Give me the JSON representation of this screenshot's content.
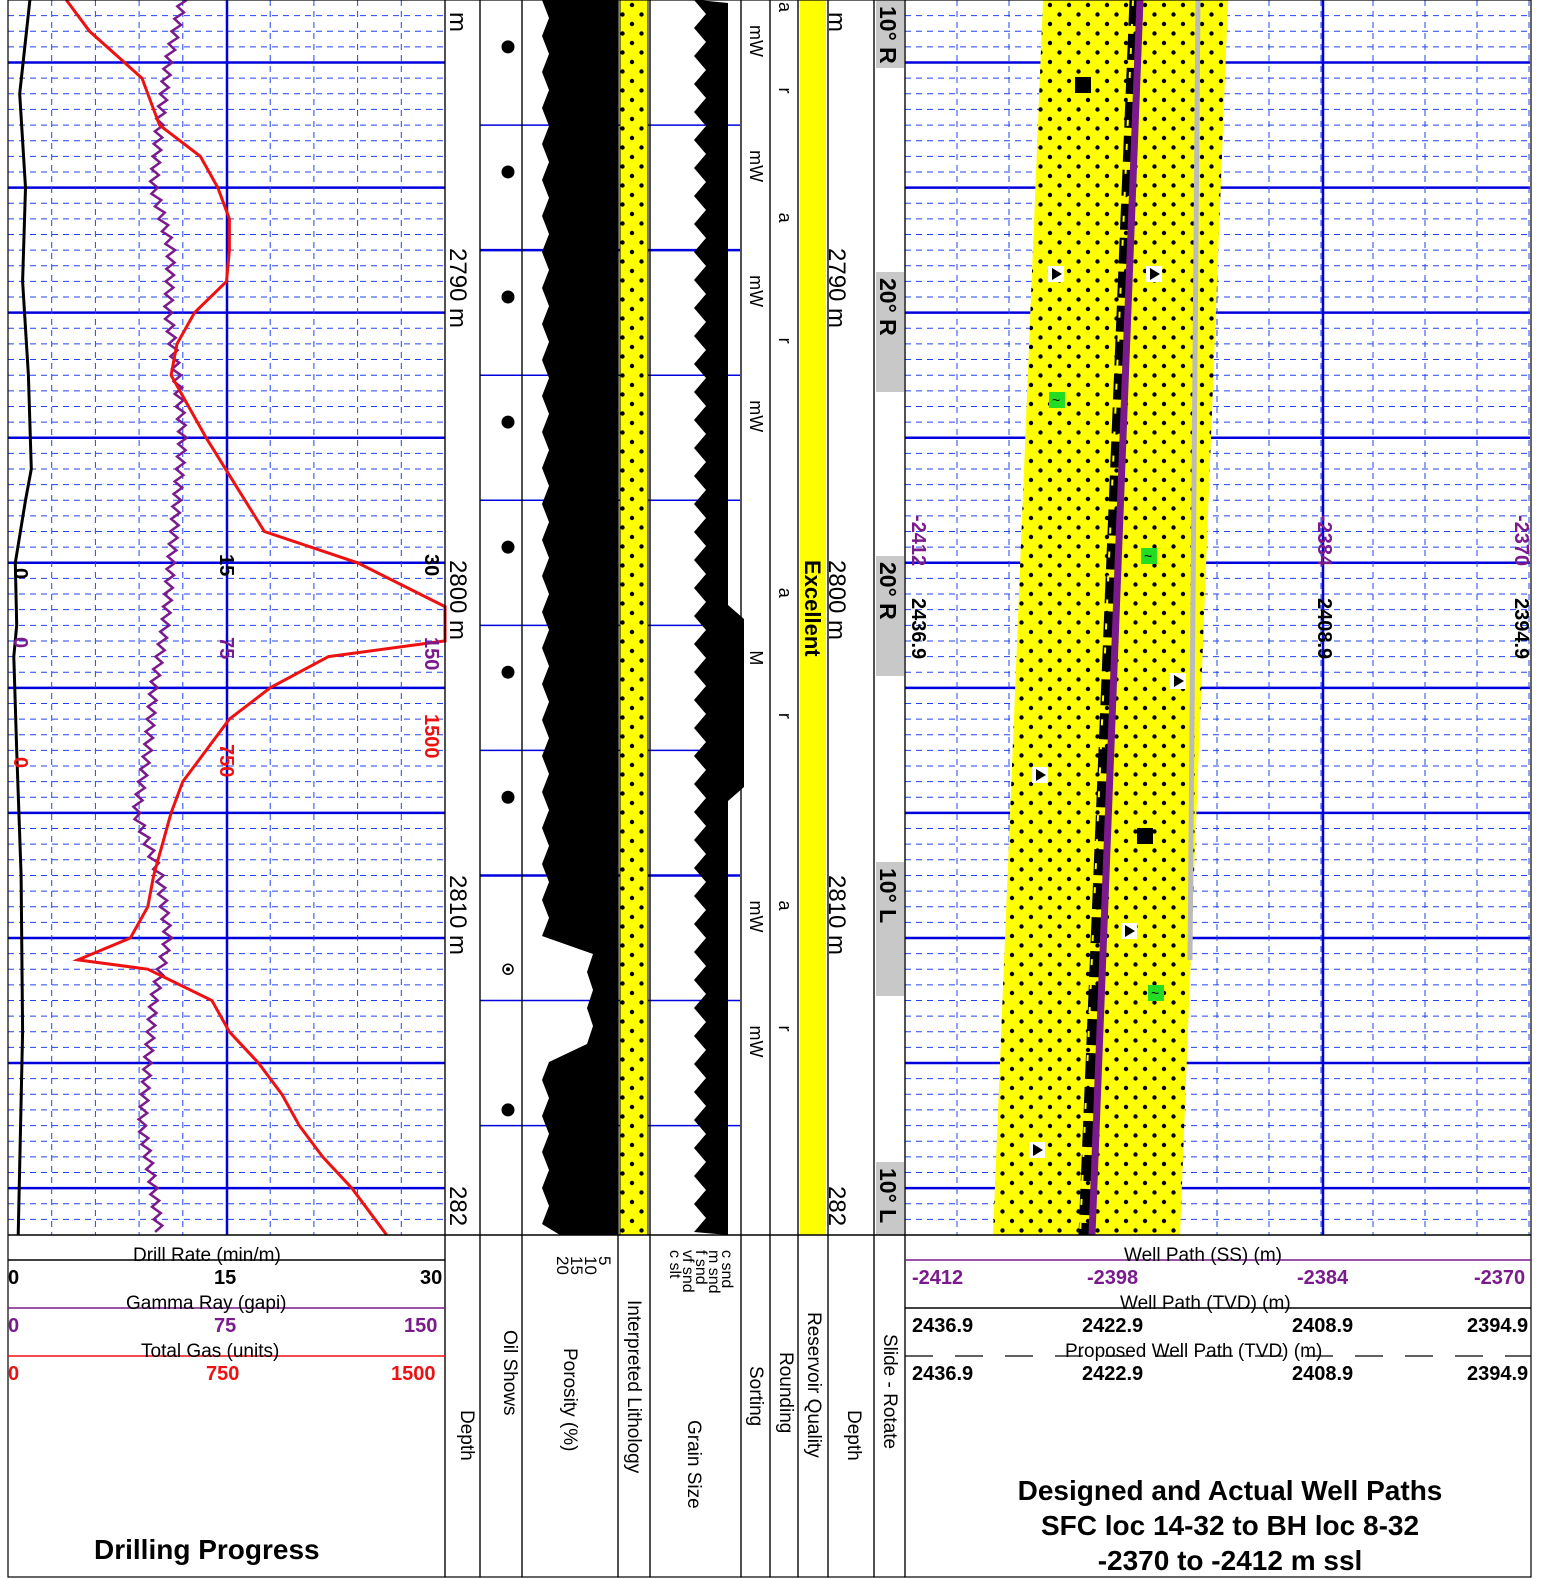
{
  "colors": {
    "grid_major": "#0000dd",
    "grid_minor": "#2244ee",
    "gamma": "#7a1a8c",
    "gas": "#ee1111",
    "rate": "#000000",
    "yellow": "#ffff00",
    "gray_slide": "#c8c8c8",
    "green_mark": "#22dd22"
  },
  "chart_data": {
    "type": "well-log",
    "depth": {
      "top": 2782.0,
      "bottom": 2821.5,
      "unit": "m",
      "labels": [
        "2790 m",
        "2800 m",
        "2810 m",
        "282"
      ],
      "top_partial": "m"
    },
    "scales": {
      "drill_rate": {
        "label": "Drill Rate (min/m)",
        "min": 0,
        "mid": 15,
        "max": 30,
        "ticks": [
          "0",
          "15",
          "30"
        ]
      },
      "gamma_ray": {
        "label": "Gamma Ray (gapi)",
        "min": 0,
        "mid": 75,
        "max": 150,
        "ticks": [
          "0",
          "75",
          "150"
        ]
      },
      "total_gas": {
        "label": "Total Gas (units)",
        "min": 0,
        "mid": 750,
        "max": 1500,
        "ticks": [
          "0",
          "750",
          "1500"
        ]
      },
      "well_path_ss": {
        "label": "Well Path (SS) (m)",
        "ticks": [
          "-2412",
          "-2398",
          "-2384",
          "-2370"
        ]
      },
      "well_path_tvd": {
        "label": "Well Path (TVD) (m)",
        "ticks": [
          "2436.9",
          "2422.9",
          "2408.9",
          "2394.9"
        ]
      },
      "proposed_tvd": {
        "label": "Proposed Well Path (TVD) (m)",
        "ticks": [
          "2436.9",
          "2422.9",
          "2408.9",
          "2394.9"
        ]
      }
    },
    "total_gas_series": {
      "depth": [
        2782,
        2783,
        2784.5,
        2786,
        2787,
        2788,
        2789,
        2790,
        2791,
        2792,
        2793,
        2794,
        2795,
        2796,
        2797.5,
        2799,
        2800,
        2801.4,
        2802.5,
        2803,
        2804,
        2805,
        2806,
        2807,
        2808,
        2809,
        2810,
        2811,
        2812,
        2812.7,
        2813,
        2814,
        2815,
        2816,
        2817,
        2818,
        2819,
        2820,
        2821.5
      ],
      "value": [
        200,
        280,
        460,
        520,
        660,
        720,
        760,
        760,
        750,
        640,
        580,
        560,
        620,
        680,
        780,
        880,
        1200,
        1500,
        1500,
        1100,
        900,
        760,
        680,
        600,
        560,
        530,
        500,
        480,
        420,
        240,
        480,
        700,
        760,
        860,
        940,
        1000,
        1080,
        1180,
        1300
      ]
    },
    "gamma_series": {
      "depth": [
        2782,
        2784,
        2786,
        2788,
        2790,
        2792,
        2794,
        2796,
        2798,
        2800,
        2802,
        2804,
        2806,
        2808,
        2810,
        2812,
        2814,
        2816,
        2818,
        2820,
        2821.5
      ],
      "value": [
        60,
        55,
        52,
        50,
        56,
        55,
        58,
        60,
        58,
        56,
        54,
        50,
        48,
        44,
        52,
        55,
        50,
        48,
        46,
        50,
        52
      ]
    },
    "drill_rate_series": {
      "depth": [
        2782,
        2785,
        2788,
        2791,
        2794,
        2797,
        2798,
        2800,
        2802,
        2803,
        2806,
        2810,
        2815,
        2821.5
      ],
      "value": [
        1.5,
        0.8,
        1.2,
        1.0,
        1.4,
        1.6,
        1.2,
        0.5,
        0.6,
        0.4,
        0.6,
        0.9,
        1.0,
        0.7
      ]
    },
    "oil_show_depths": [
      2783.5,
      2787.5,
      2791.5,
      2795.5,
      2799.5,
      2803.5,
      2807.5,
      2813,
      2817.5
    ],
    "porosity_ticks": [
      "5",
      "10",
      "15",
      "20"
    ],
    "grain_size_ticks": [
      "c snd",
      "m snd",
      "f snd",
      "vf snd",
      "c slt"
    ],
    "sorting_labels": [
      {
        "depth": 2782.8,
        "text": "mW"
      },
      {
        "depth": 2786.8,
        "text": "mW"
      },
      {
        "depth": 2790.8,
        "text": "mW"
      },
      {
        "depth": 2794.8,
        "text": "mW"
      },
      {
        "depth": 2802.8,
        "text": "M"
      },
      {
        "depth": 2810.8,
        "text": "mW"
      },
      {
        "depth": 2814.8,
        "text": "mW"
      }
    ],
    "rounding_labels": [
      {
        "depth": 2784.8,
        "text": "r"
      },
      {
        "depth": 2788.8,
        "text": "a"
      },
      {
        "depth": 2792.8,
        "text": "r"
      },
      {
        "depth": 2800.8,
        "text": "a"
      },
      {
        "depth": 2804.8,
        "text": "r"
      },
      {
        "depth": 2810.8,
        "text": "a"
      },
      {
        "depth": 2814.8,
        "text": "r"
      }
    ],
    "rounding_top_partial": "a",
    "reservoir_quality": "Excellent",
    "slide_rotate": [
      {
        "text": "10° R"
      },
      {
        "text": "20° R"
      },
      {
        "text": "20° R"
      },
      {
        "text": "10° L"
      },
      {
        "text": "10° L"
      }
    ]
  },
  "headers": {
    "drill_rate_label": "Drill Rate (min/m)",
    "gamma_label": "Gamma Ray (gapi)",
    "gas_label": "Total Gas (units)",
    "depth": "Depth",
    "oil_shows": "Oil Shows",
    "porosity": "Porosity (%)",
    "lithology": "Interpreted Lithology",
    "grain_size": "Grain Size",
    "sorting": "Sorting",
    "rounding": "Rounding",
    "reservoir_quality": "Reservoir Quality",
    "depth2": "Depth",
    "slide_rotate": "Slide - Rotate",
    "well_ss_label": "Well Path (SS) (m)",
    "well_tvd_label": "Well Path (TVD) (m)",
    "proposed_tvd_label": "Proposed Well Path (TVD) (m)"
  },
  "titles": {
    "left": "Drilling Progress",
    "right_line1": "Designed and Actual Well Paths",
    "right_line2": "SFC loc 14-32 to BH loc 8-32",
    "right_line3": "-2370 to -2412 m ssl"
  },
  "rotated_scale_labels": {
    "rate": [
      "0",
      "15",
      "30"
    ],
    "gamma": [
      "0",
      "75",
      "150"
    ],
    "gas": [
      "0",
      "750",
      "1500"
    ],
    "ss": [
      "-2412",
      "-2384",
      "-2370"
    ],
    "tvd": [
      "2436.9",
      "2408.9",
      "2394.9"
    ]
  }
}
